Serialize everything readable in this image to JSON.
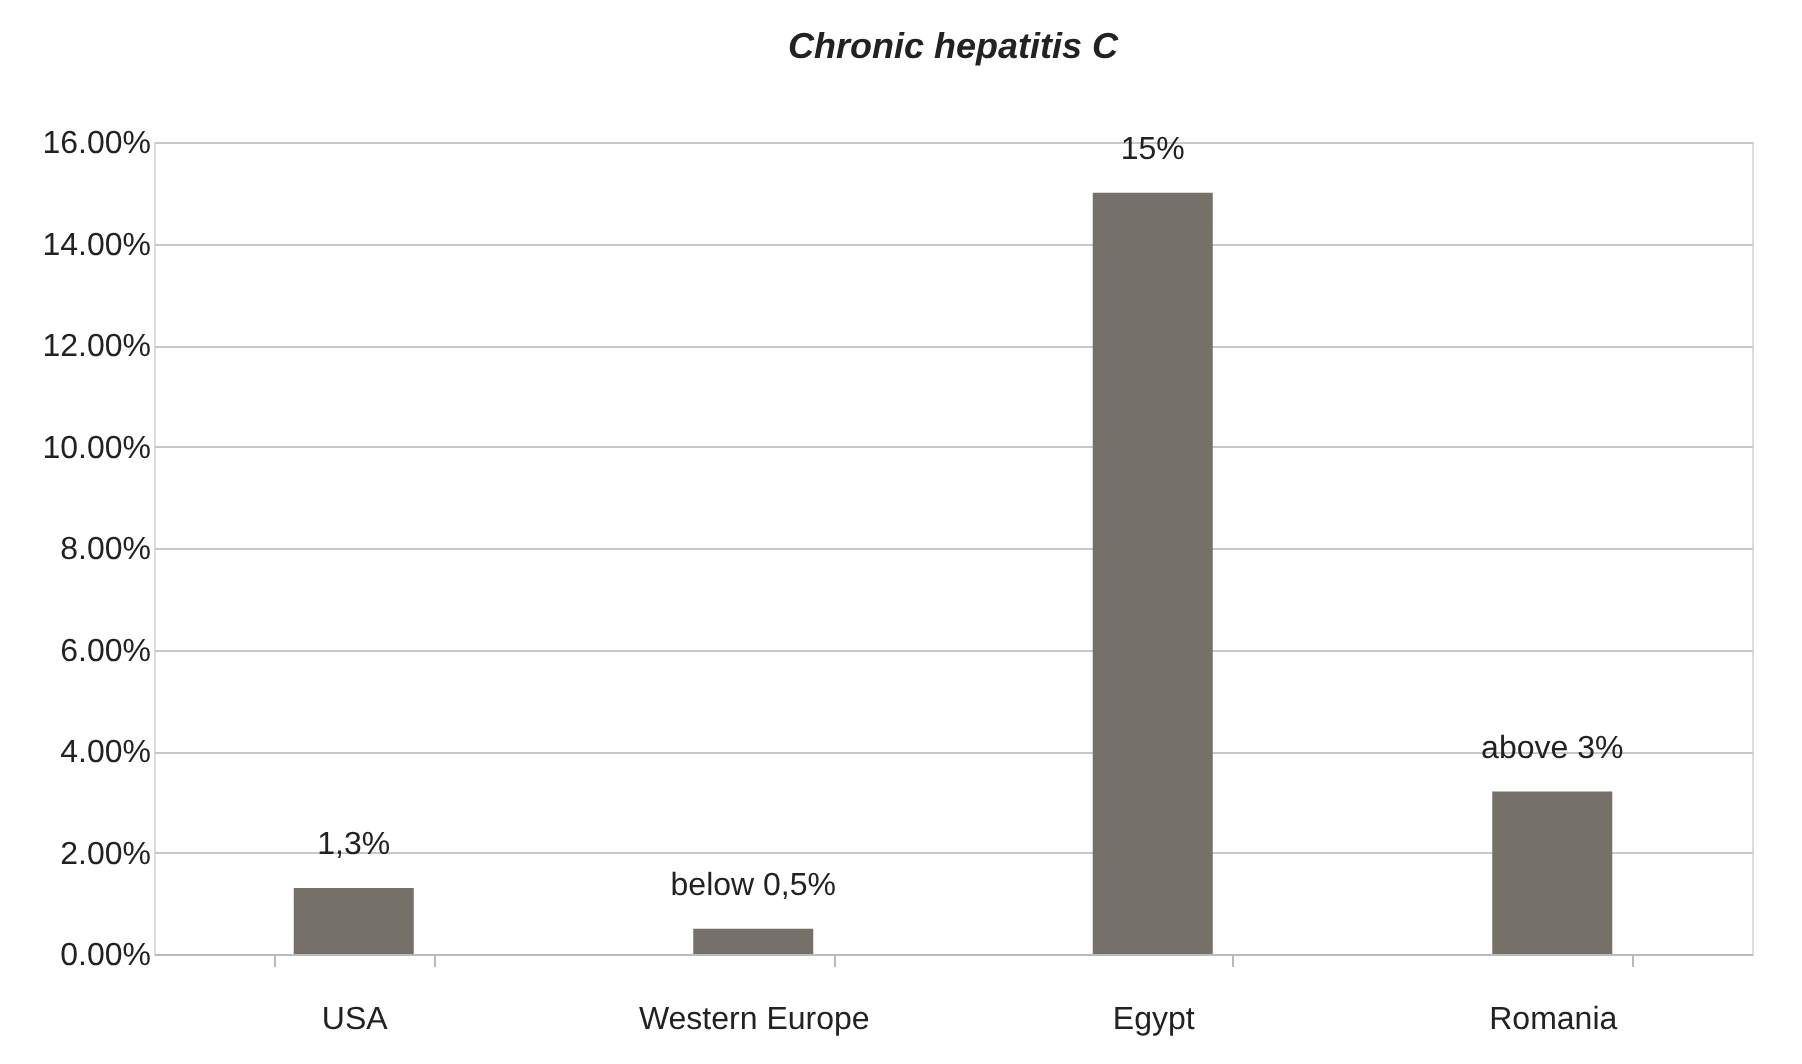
{
  "chart_data": {
    "type": "bar",
    "title": "Chronic hepatitis C",
    "categories": [
      "USA",
      "Western Europe",
      "Egypt",
      "Romania"
    ],
    "values": [
      1.3,
      0.5,
      15,
      3.2
    ],
    "value_labels": [
      "1,3%",
      "below  0,5%",
      "15%",
      "above 3%"
    ],
    "color": "#757068",
    "ylim": [
      0,
      16
    ],
    "yticks": [
      {
        "value": 0,
        "label": "0.00%"
      },
      {
        "value": 2,
        "label": "2.00%"
      },
      {
        "value": 4,
        "label": "4.00%"
      },
      {
        "value": 6,
        "label": "6.00%"
      },
      {
        "value": 8,
        "label": "8.00%"
      },
      {
        "value": 10,
        "label": "10.00%"
      },
      {
        "value": 12,
        "label": "12.00%"
      },
      {
        "value": 14,
        "label": "14.00%"
      },
      {
        "value": 16,
        "label": "16.00%"
      }
    ],
    "grid": "y"
  }
}
